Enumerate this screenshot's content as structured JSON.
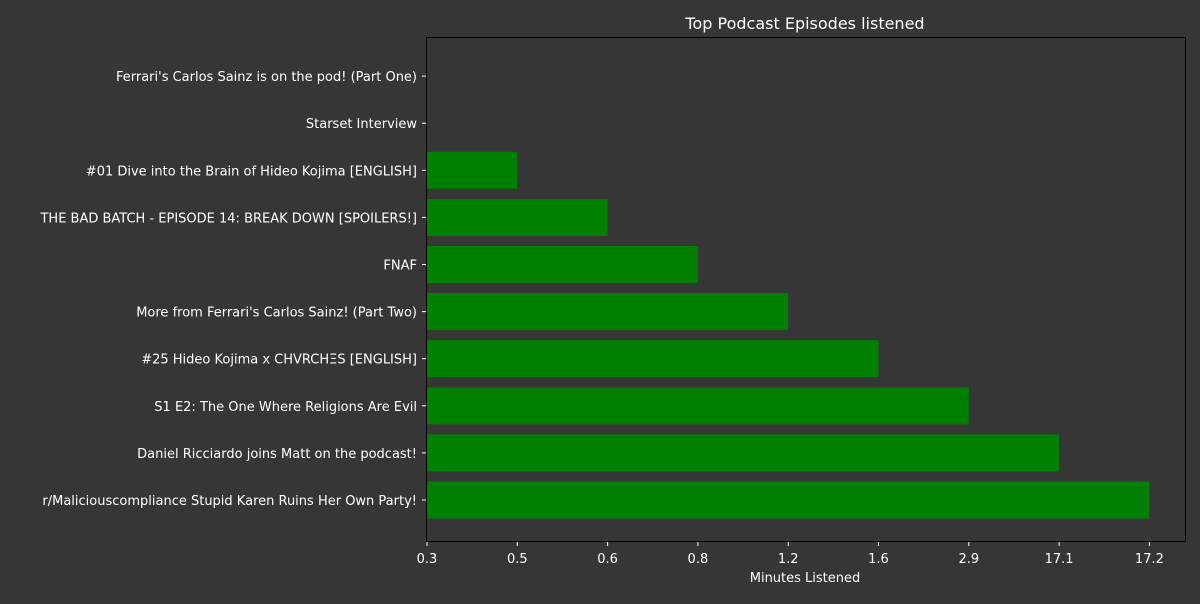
{
  "chart_data": {
    "type": "bar",
    "orientation": "horizontal",
    "title": "Top Podcast Episodes listened",
    "xlabel": "Minutes Listened",
    "ylabel": "",
    "x_tick_labels": [
      "0.3",
      "0.5",
      "0.6",
      "0.8",
      "1.2",
      "1.6",
      "2.9",
      "17.1",
      "17.2"
    ],
    "categories": [
      "r/Maliciouscompliance Stupid Karen Ruins Her Own Party!",
      "Daniel Ricciardo joins Matt on the podcast!",
      "S1 E2: The One Where Religions Are Evil",
      "#25 Hideo Kojima x CHVRCHΞS [ENGLISH]",
      "More from Ferrari's Carlos Sainz! (Part Two)",
      "FNAF ",
      "THE BAD BATCH - EPISODE 14: BREAK DOWN [SPOILERS!]",
      "#01 Dive into the Brain of Hideo Kojima [ENGLISH]",
      "Starset Interview",
      "Ferrari's Carlos Sainz is on the pod! (Part One)"
    ],
    "values": [
      "17.2",
      "17.1",
      "2.9",
      "1.6",
      "1.2",
      "0.8",
      "0.6",
      "0.5",
      "0.3",
      "0.3"
    ],
    "grid": false,
    "legend": "none",
    "colors": {
      "bar": "#008000",
      "background": "#363636",
      "text": "#ffffff",
      "axis": "#000000"
    }
  }
}
